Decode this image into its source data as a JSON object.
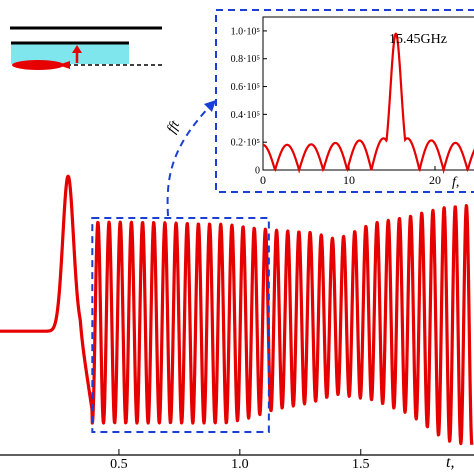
{
  "chart_data": [
    {
      "type": "line",
      "title": "",
      "xlabel": "t,",
      "ylabel": "",
      "xlim": [
        0.0,
        1.96
      ],
      "ylim": [
        -1.0,
        1.5
      ],
      "x_ticks": [
        0.5,
        1.0,
        1.5
      ],
      "x_tick_labels": [
        "0.5",
        "1.0",
        "1.5"
      ],
      "grid": false,
      "series": [
        {
          "color": "#e60000",
          "baseline": {
            "x": [
              0.0,
              0.23
            ],
            "y": [
              0.0,
              0.0
            ]
          },
          "pulse": {
            "peak_t": 0.29,
            "peak_y": 1.35
          },
          "oscillation": {
            "t_start": 0.39,
            "t_end": 1.96,
            "frequency_ghz": 15.45,
            "upper_envelope": [
              [
                0.4,
                0.95
              ],
              [
                0.6,
                0.95
              ],
              [
                0.95,
                0.93
              ],
              [
                1.05,
                0.9
              ],
              [
                1.15,
                0.88
              ],
              [
                1.3,
                0.86
              ],
              [
                1.4,
                0.8
              ],
              [
                1.55,
                0.94
              ],
              [
                1.7,
                1.0
              ],
              [
                1.85,
                1.08
              ],
              [
                1.96,
                1.1
              ]
            ],
            "lower_envelope": [
              [
                0.4,
                -0.8
              ],
              [
                0.6,
                -0.8
              ],
              [
                0.95,
                -0.8
              ],
              [
                1.05,
                -0.75
              ],
              [
                1.15,
                -0.68
              ],
              [
                1.3,
                -0.62
              ],
              [
                1.4,
                -0.55
              ],
              [
                1.55,
                -0.6
              ],
              [
                1.7,
                -0.72
              ],
              [
                1.85,
                -0.95
              ],
              [
                1.96,
                -1.0
              ]
            ]
          }
        }
      ],
      "highlight_box": {
        "x_range": [
          0.39,
          1.12
        ],
        "style": "dashed",
        "color": "#1a3fd6"
      },
      "arrow_label": "fft"
    },
    {
      "type": "line",
      "title": "",
      "xlabel": "f,",
      "ylabel": "",
      "xlim": [
        0,
        25
      ],
      "ylim": [
        0,
        110000.0
      ],
      "x_ticks": [
        0,
        10,
        20
      ],
      "x_tick_labels": [
        "0",
        "10",
        "20"
      ],
      "y_ticks": [
        0,
        20000,
        40000,
        60000,
        80000,
        100000
      ],
      "y_tick_labels": [
        "0",
        "0.2·10⁵",
        "0.4·10⁵",
        "0.6·10⁵",
        "0.8·10⁵",
        "1.0·10⁵"
      ],
      "annotation": "15.45GHz",
      "series": [
        {
          "color": "#e60000",
          "peak_frequency": 15.45,
          "peak_value": 98000,
          "sidelobe_period": 2.8,
          "baseline_value": 20000
        }
      ]
    }
  ],
  "legend_icon": {
    "description_colors": {
      "line": "#000000",
      "layer": "#7fe6ee",
      "arrow": "#e60000",
      "blob": "#e60000"
    }
  }
}
